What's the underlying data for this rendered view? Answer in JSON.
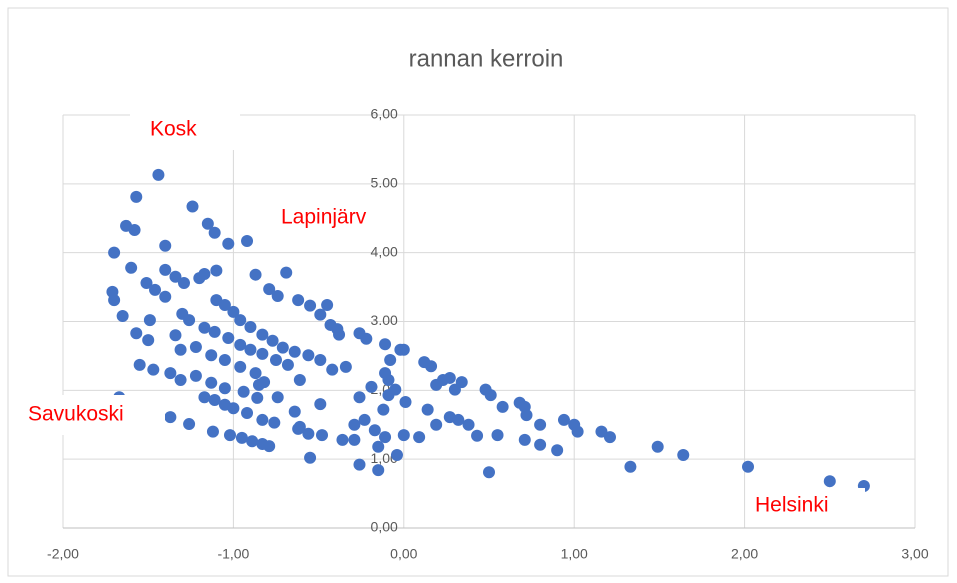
{
  "chart_data": {
    "type": "scatter",
    "title": "rannan kerroin",
    "color": "#4472c4",
    "grid": true,
    "annotations": [
      "Kosk",
      "Lapinjärv",
      "Savukoski",
      "Helsinki"
    ],
    "xlim": [
      -2,
      3
    ],
    "xticks": [
      {
        "value": -2,
        "label": "-2,00"
      },
      {
        "value": -1,
        "label": "-1,00"
      },
      {
        "value": 0,
        "label": "0,00"
      },
      {
        "value": 1,
        "label": "1,00"
      },
      {
        "value": 2,
        "label": "2,00"
      },
      {
        "value": 3,
        "label": "3,00"
      }
    ],
    "ylim": [
      0,
      6
    ],
    "yticks": [
      {
        "value": 0,
        "label": "0,00"
      },
      {
        "value": 1,
        "label": "1,00"
      },
      {
        "value": 2,
        "label": "2,00"
      },
      {
        "value": 3,
        "label": "3.00"
      },
      {
        "value": 4,
        "label": "4,00"
      },
      {
        "value": 5,
        "label": "5.00"
      },
      {
        "value": 6,
        "label": "6,00"
      }
    ],
    "x": [
      -1.44,
      -1.57,
      -1.63,
      -1.58,
      -1.24,
      -1.15,
      -1.11,
      -1.03,
      -0.92,
      -1.4,
      -1.7,
      -1.6,
      -1.4,
      -1.34,
      -1.29,
      -1.2,
      -1.17,
      -1.1,
      -0.87,
      -0.69,
      -0.79,
      -0.74,
      -1.71,
      -1.7,
      -1.51,
      -1.46,
      -1.4,
      -1.65,
      -1.1,
      -1.05,
      -1.0,
      -0.96,
      -0.9,
      -0.83,
      -0.77,
      -0.71,
      -0.64,
      -0.56,
      -0.49,
      -0.62,
      -0.55,
      -0.49,
      -0.43,
      -0.38,
      -0.45,
      -0.39,
      -0.26,
      -0.22,
      -0.11,
      -0.02,
      -0.08,
      -0.11,
      -0.34,
      -0.42,
      -1.3,
      -1.26,
      -1.17,
      -1.11,
      -1.03,
      -0.96,
      -0.9,
      -0.83,
      -0.75,
      -0.68,
      -1.49,
      -1.5,
      -1.57,
      -1.34,
      -1.31,
      -1.22,
      -1.13,
      -1.05,
      -0.96,
      -0.87,
      -0.82,
      -1.55,
      -1.47,
      -1.37,
      -1.31,
      -1.22,
      -1.13,
      -1.05,
      -0.94,
      -0.85,
      -0.74,
      -0.61,
      -0.86,
      -1.17,
      -1.11,
      -1.05,
      -1.0,
      -0.92,
      -0.83,
      -0.76,
      -0.64,
      -0.61,
      -0.49,
      -1.37,
      -1.26,
      -1.12,
      -1.02,
      -0.95,
      -0.89,
      -0.83,
      -0.79,
      -0.62,
      -0.56,
      -0.48,
      -0.55,
      -1.67,
      -0.36,
      -0.29,
      -0.23,
      -0.17,
      -0.12,
      -0.11,
      -0.15,
      -0.26,
      -0.15,
      -0.29,
      -0.26,
      -0.19,
      -0.09,
      -0.05,
      0.01,
      -0.04,
      0.0,
      0.09,
      0.14,
      0.12,
      0.16,
      0.19,
      0.23,
      0.27,
      0.3,
      0.34,
      0.19,
      0.27,
      0.32,
      0.38,
      0.43,
      0.48,
      0.51,
      0.55,
      0.5,
      0.58,
      0.68,
      0.71,
      0.72,
      0.8,
      0.71,
      0.8,
      0.9,
      0.94,
      1.0,
      1.02,
      1.16,
      1.21,
      1.33,
      1.49,
      1.64,
      2.02,
      2.5,
      2.7,
      -0.09,
      0.0
    ],
    "values": [
      5.13,
      4.81,
      4.39,
      4.33,
      4.67,
      4.42,
      4.29,
      4.13,
      4.17,
      4.1,
      4.0,
      3.78,
      3.75,
      3.65,
      3.56,
      3.63,
      3.69,
      3.74,
      3.68,
      3.71,
      3.47,
      3.37,
      3.43,
      3.31,
      3.56,
      3.46,
      3.36,
      3.08,
      3.31,
      3.24,
      3.14,
      3.02,
      2.92,
      2.81,
      2.72,
      2.62,
      2.56,
      2.51,
      2.44,
      3.31,
      3.23,
      3.1,
      2.95,
      2.81,
      3.24,
      2.89,
      2.83,
      2.75,
      2.67,
      2.59,
      2.44,
      2.25,
      2.34,
      2.3,
      3.11,
      3.02,
      2.91,
      2.85,
      2.76,
      2.66,
      2.59,
      2.53,
      2.44,
      2.37,
      3.02,
      2.73,
      2.83,
      2.8,
      2.59,
      2.63,
      2.51,
      2.44,
      2.34,
      2.25,
      2.12,
      2.37,
      2.3,
      2.25,
      2.15,
      2.21,
      2.11,
      2.03,
      1.98,
      2.08,
      1.9,
      2.15,
      1.89,
      1.9,
      1.86,
      1.79,
      1.74,
      1.67,
      1.57,
      1.53,
      1.69,
      1.47,
      1.8,
      1.61,
      1.51,
      1.4,
      1.35,
      1.31,
      1.26,
      1.22,
      1.19,
      1.44,
      1.37,
      1.35,
      1.02,
      1.9,
      1.28,
      1.5,
      1.57,
      1.42,
      1.72,
      1.32,
      1.18,
      0.92,
      0.84,
      1.28,
      1.9,
      2.05,
      2.15,
      2.01,
      1.83,
      1.06,
      1.35,
      1.32,
      1.72,
      2.41,
      2.35,
      2.08,
      2.15,
      2.18,
      2.01,
      2.12,
      1.5,
      1.61,
      1.57,
      1.5,
      1.34,
      2.01,
      1.93,
      1.35,
      0.81,
      1.76,
      1.82,
      1.76,
      1.64,
      1.5,
      1.28,
      1.21,
      1.13,
      1.57,
      1.5,
      1.4,
      1.4,
      1.32,
      0.89,
      1.18,
      1.06,
      0.89,
      0.68,
      0.61,
      1.93,
      2.59
    ]
  }
}
